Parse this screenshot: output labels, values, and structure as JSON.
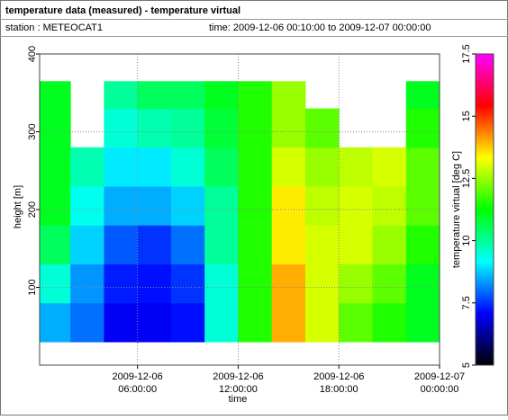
{
  "chart_data": {
    "type": "heatmap",
    "title": "temperature data (measured) - temperature virtual",
    "station": "station : METEOCAT1",
    "period": "time: 2009-12-06 00:10:00 to 2009-12-07 00:00:00",
    "xlabel": "time",
    "ylabel": "height [m]",
    "colorbar_label": "temperature virtual [deg C]",
    "xlim": [
      "2009-12-06 00:10:00",
      "2009-12-07 00:00:00"
    ],
    "xticks": [
      {
        "value": "2009-12-06 06:00:00",
        "label": [
          "2009-12-06",
          "06:00:00"
        ]
      },
      {
        "value": "2009-12-06 12:00:00",
        "label": [
          "2009-12-06",
          "12:00:00"
        ]
      },
      {
        "value": "2009-12-06 18:00:00",
        "label": [
          "2009-12-06",
          "18:00:00"
        ]
      },
      {
        "value": "2009-12-07 00:00:00",
        "label": [
          "2009-12-07",
          "00:00:00"
        ]
      }
    ],
    "ylim": [
      0,
      400
    ],
    "yticks": [
      100,
      200,
      300,
      400
    ],
    "clim": [
      5,
      17.5
    ],
    "cticks": [
      5,
      7.5,
      10,
      12.5,
      15,
      17.5
    ],
    "colorscale": [
      "#000000",
      "#0000ff",
      "#00ffff",
      "#00ff00",
      "#ffff00",
      "#ff0000",
      "#ff00ff"
    ],
    "grid": true,
    "x_bins": [
      "2009-12-06 00:10:00",
      "2009-12-06 02:00:00",
      "2009-12-06 04:00:00",
      "2009-12-06 06:00:00",
      "2009-12-06 08:00:00",
      "2009-12-06 10:00:00",
      "2009-12-06 12:00:00",
      "2009-12-06 14:00:00",
      "2009-12-06 16:00:00",
      "2009-12-06 18:00:00",
      "2009-12-06 20:00:00",
      "2009-12-06 22:00:00",
      "2009-12-07 00:00:00"
    ],
    "y_bins": [
      30,
      80,
      130,
      180,
      230,
      280,
      330,
      365
    ],
    "values": [
      [
        8.5,
        9.5,
        10.5,
        11,
        11,
        11,
        11
      ],
      [
        8,
        8.3,
        8.8,
        9.3,
        9.8,
        null,
        null
      ],
      [
        7,
        7.3,
        7.8,
        8.5,
        9,
        9.5,
        10
      ],
      [
        7,
        7.2,
        7.5,
        8.5,
        9,
        9.8,
        10.5
      ],
      [
        7.2,
        7.5,
        8,
        8.8,
        9.5,
        10,
        10.5
      ],
      [
        9.5,
        9.5,
        10,
        10,
        10.5,
        10.8,
        11
      ],
      [
        11.5,
        11.5,
        11.5,
        11.5,
        11.5,
        11.5,
        11.5
      ],
      [
        14,
        14,
        13.5,
        13.5,
        13,
        12.5,
        12.5
      ],
      [
        13,
        13,
        13,
        12.8,
        12.5,
        12,
        null
      ],
      [
        12,
        12.5,
        13,
        13,
        12.8,
        null,
        null
      ],
      [
        11.5,
        12,
        12.5,
        12.8,
        13,
        null,
        null
      ],
      [
        11,
        11,
        11.5,
        12,
        12,
        11.5,
        11
      ]
    ]
  }
}
